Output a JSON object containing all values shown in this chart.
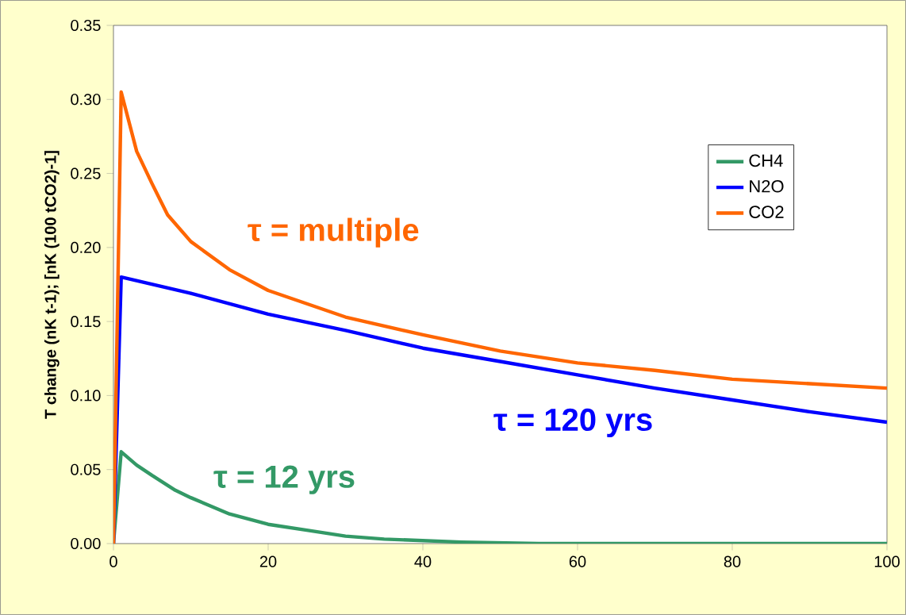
{
  "chart_data": {
    "type": "line",
    "ylabel": "T change (nK t-1); [nK (100 tCO2)-1]",
    "xlim": [
      0,
      100
    ],
    "xticks": [
      0,
      20,
      40,
      60,
      80,
      100
    ],
    "ylim": [
      0,
      0.35
    ],
    "yticks": [
      {
        "value": 0,
        "label": "0.00"
      },
      {
        "value": 0.05,
        "label": "0.05"
      },
      {
        "value": 0.1,
        "label": "0.10"
      },
      {
        "value": 0.15,
        "label": "0.15"
      },
      {
        "value": 0.2,
        "label": "0.20"
      },
      {
        "value": 0.25,
        "label": "0.25"
      },
      {
        "value": 0.3,
        "label": "0.30"
      },
      {
        "value": 0.35,
        "label": "0.35"
      }
    ],
    "legend": "top right",
    "series": [
      {
        "name": "CH4",
        "color": "#339966",
        "x": [
          0,
          1,
          3,
          5,
          8,
          10,
          15,
          20,
          25,
          30,
          35,
          40,
          45,
          55,
          100
        ],
        "values": [
          0,
          0.062,
          0.053,
          0.046,
          0.036,
          0.031,
          0.02,
          0.013,
          0.009,
          0.005,
          0.003,
          0.002,
          0.001,
          0,
          0
        ]
      },
      {
        "name": "N2O",
        "color": "#0000ff",
        "x": [
          0,
          1,
          10,
          20,
          30,
          40,
          50,
          60,
          70,
          80,
          90,
          100
        ],
        "values": [
          0,
          0.18,
          0.169,
          0.155,
          0.144,
          0.132,
          0.123,
          0.114,
          0.105,
          0.097,
          0.089,
          0.082
        ]
      },
      {
        "name": "CO2",
        "color": "#ff6600",
        "x": [
          0,
          1,
          3,
          5,
          7,
          10,
          15,
          20,
          30,
          40,
          50,
          60,
          70,
          80,
          90,
          100
        ],
        "values": [
          0,
          0.305,
          0.265,
          0.243,
          0.222,
          0.204,
          0.185,
          0.171,
          0.153,
          0.141,
          0.13,
          0.122,
          0.117,
          0.111,
          0.108,
          0.105
        ]
      }
    ],
    "annotations": [
      "τ = 12 yrs",
      "τ = 120 yrs",
      "τ =  multiple"
    ]
  }
}
